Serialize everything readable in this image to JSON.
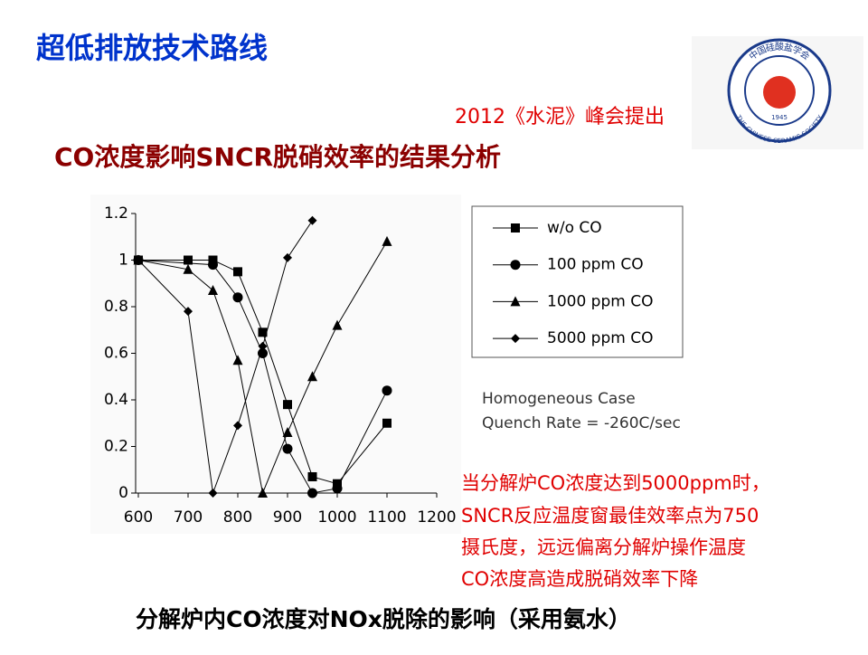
{
  "header": {
    "title": "超低排放技术路线",
    "source": "2012《水泥》峰会提出",
    "subtitle": "CO浓度影响SNCR脱硝效率的结果分析"
  },
  "logo": {
    "top": "中国硅酸盐学会",
    "bottom": "THE CHINESE CERAMIC SOCIETY",
    "year": "1945"
  },
  "chart_data": {
    "type": "line",
    "xlim": [
      600,
      1200
    ],
    "xticks": [
      600,
      700,
      800,
      900,
      1000,
      1100,
      1200
    ],
    "ylim": [
      0,
      1.2
    ],
    "yticks": [
      0,
      0.2,
      0.4,
      0.6,
      0.8,
      1,
      1.2
    ],
    "annotations": [
      "Homogeneous Case",
      "Quench Rate = -260C/sec"
    ],
    "series": [
      {
        "name": "w/o CO",
        "color": "#000000",
        "marker": "square",
        "x": [
          600,
          700,
          750,
          800,
          850,
          900,
          950,
          1000,
          1100
        ],
        "values": [
          1,
          1,
          1,
          0.95,
          0.69,
          0.38,
          0.07,
          0.04,
          0.3
        ]
      },
      {
        "name": "100 ppm CO",
        "color": "#000000",
        "marker": "circle",
        "x": [
          600,
          750,
          800,
          850,
          900,
          950,
          1000,
          1100
        ],
        "values": [
          1,
          0.98,
          0.84,
          0.6,
          0.19,
          0,
          0.02,
          0.44
        ]
      },
      {
        "name": "1000 ppm CO",
        "color": "#000000",
        "marker": "triangle",
        "x": [
          600,
          700,
          750,
          800,
          850,
          900,
          950,
          1000,
          1100
        ],
        "values": [
          1,
          0.96,
          0.87,
          0.57,
          0,
          0.26,
          0.5,
          0.72,
          1.08
        ]
      },
      {
        "name": "5000 ppm CO",
        "color": "#000000",
        "marker": "diamond",
        "x": [
          600,
          700,
          750,
          800,
          850,
          900,
          950
        ],
        "values": [
          1,
          0.78,
          0,
          0.29,
          0.63,
          1.01,
          1.17
        ]
      }
    ]
  },
  "notes": [
    "当分解炉CO浓度达到5000ppm时，",
    "SNCR反应温度窗最佳效率点为750",
    "摄氏度，远远偏离分解炉操作温度",
    "CO浓度高造成脱硝效率下降"
  ],
  "caption": "分解炉内CO浓度对NOx脱除的影响（采用氨水）"
}
